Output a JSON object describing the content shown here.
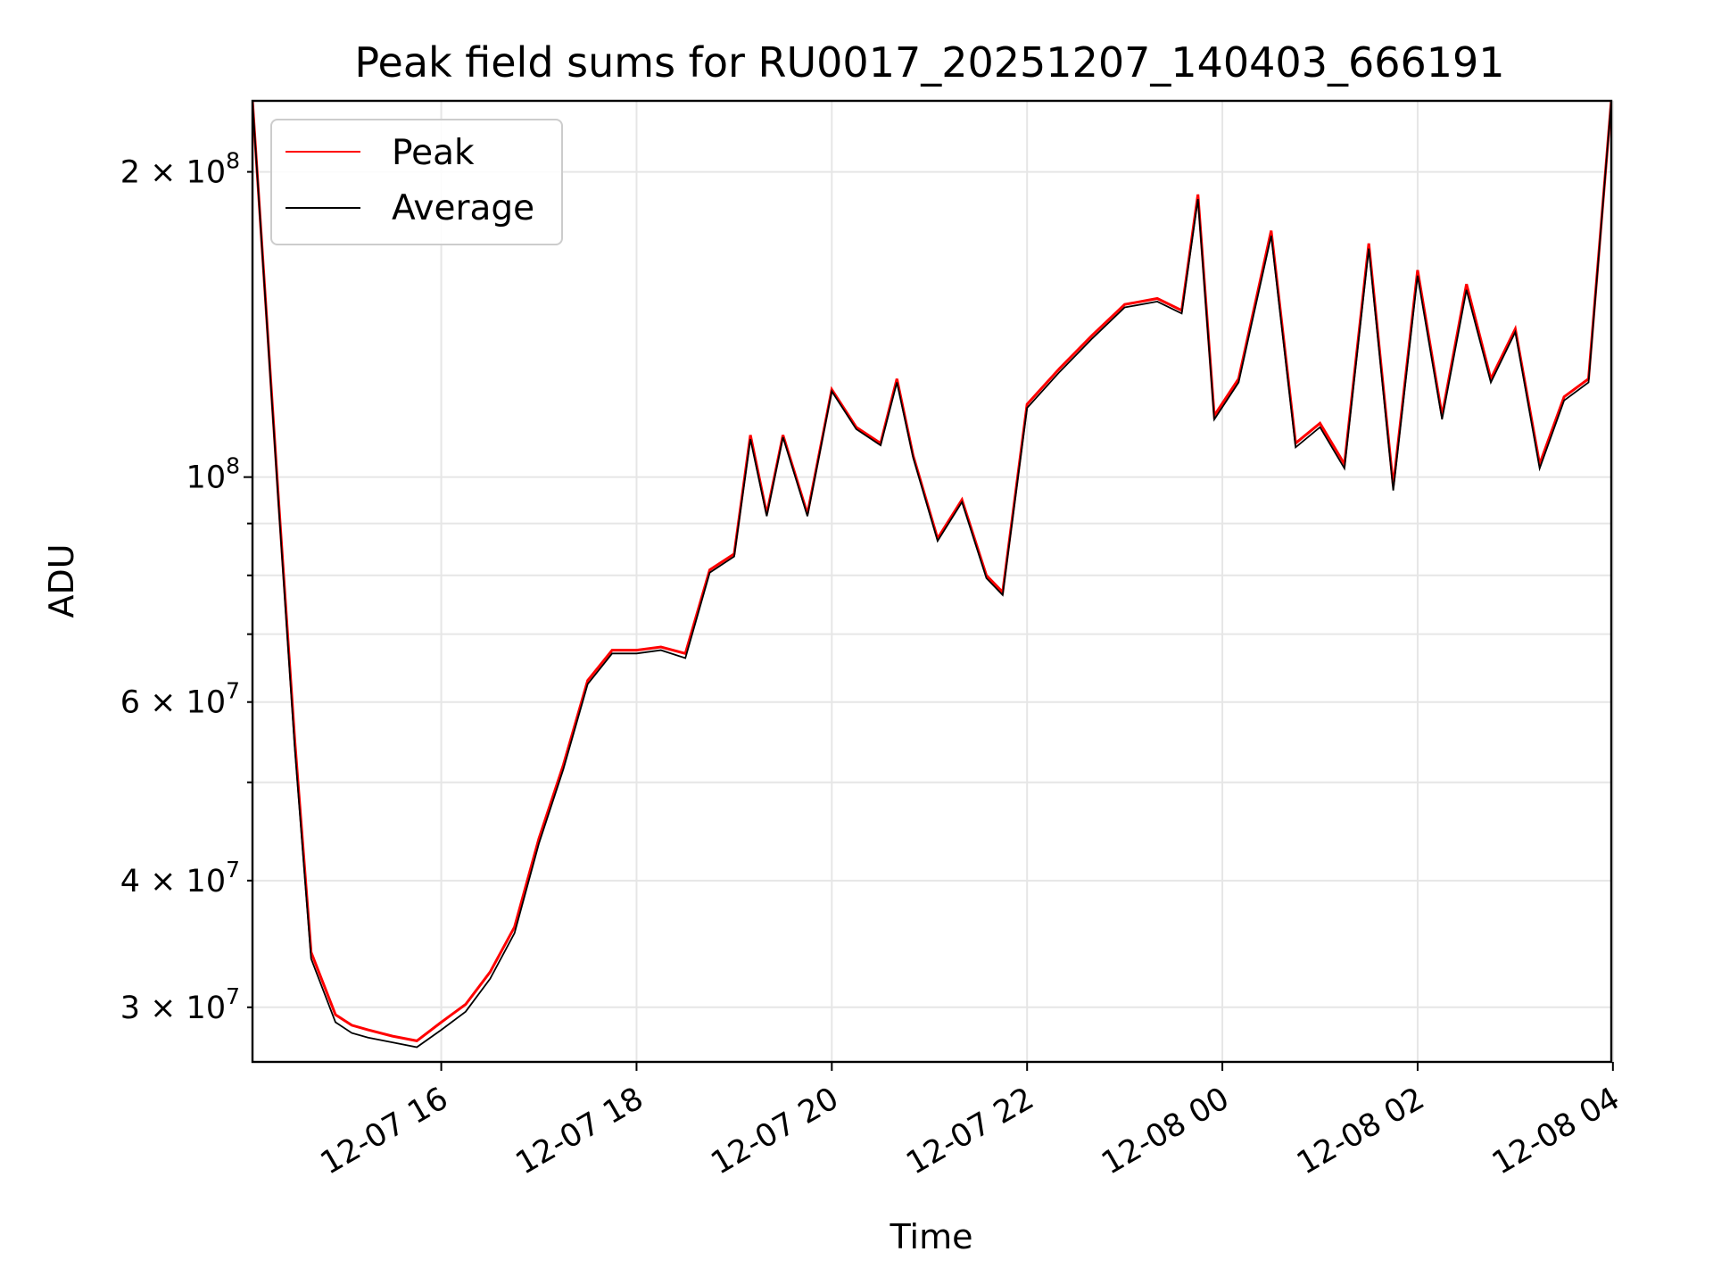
{
  "chart_data": {
    "type": "line",
    "title": "Peak field sums for RU0017_20251207_140403_666191",
    "xlabel": "Time",
    "ylabel": "ADU",
    "yscale": "log",
    "xlim": [
      "2025-12-07 14:04",
      "2025-12-08 03:59"
    ],
    "ylim": [
      26500000,
      235000000
    ],
    "grid": true,
    "legend_position": "upper left",
    "x_ticks": [
      "12-07 16",
      "12-07 18",
      "12-07 20",
      "12-07 22",
      "12-08 00",
      "12-08 02",
      "12-08 04"
    ],
    "y_ticks_major": [
      {
        "label_base": "10",
        "label_exp": "8",
        "label_mant": ""
      }
    ],
    "y_ticks_minor": [
      {
        "label_mant": "2",
        "label_base": "10",
        "label_exp": "8"
      },
      {
        "label_mant": "3",
        "label_base": "10",
        "label_exp": "7"
      },
      {
        "label_mant": "4",
        "label_base": "10",
        "label_exp": "7"
      },
      {
        "label_mant": "6",
        "label_base": "10",
        "label_exp": "7"
      }
    ],
    "series": [
      {
        "name": "Peak",
        "color": "#ff0000",
        "x": [
          "2025-12-07 14:04",
          "2025-12-07 14:20",
          "2025-12-07 14:30",
          "2025-12-07 14:40",
          "2025-12-07 14:55",
          "2025-12-07 15:05",
          "2025-12-07 15:15",
          "2025-12-07 15:30",
          "2025-12-07 15:45",
          "2025-12-07 16:00",
          "2025-12-07 16:15",
          "2025-12-07 16:30",
          "2025-12-07 16:45",
          "2025-12-07 17:00",
          "2025-12-07 17:15",
          "2025-12-07 17:30",
          "2025-12-07 17:45",
          "2025-12-07 18:00",
          "2025-12-07 18:15",
          "2025-12-07 18:30",
          "2025-12-07 18:45",
          "2025-12-07 19:00",
          "2025-12-07 19:10",
          "2025-12-07 19:20",
          "2025-12-07 19:30",
          "2025-12-07 19:45",
          "2025-12-07 20:00",
          "2025-12-07 20:15",
          "2025-12-07 20:30",
          "2025-12-07 20:40",
          "2025-12-07 20:50",
          "2025-12-07 21:05",
          "2025-12-07 21:20",
          "2025-12-07 21:35",
          "2025-12-07 21:45",
          "2025-12-07 22:00",
          "2025-12-07 22:20",
          "2025-12-07 22:40",
          "2025-12-07 23:00",
          "2025-12-07 23:20",
          "2025-12-07 23:35",
          "2025-12-07 23:45",
          "2025-12-07 23:55",
          "2025-12-08 00:10",
          "2025-12-08 00:30",
          "2025-12-08 00:45",
          "2025-12-08 01:00",
          "2025-12-08 01:15",
          "2025-12-08 01:30",
          "2025-12-08 01:45",
          "2025-12-08 02:00",
          "2025-12-08 02:15",
          "2025-12-08 02:30",
          "2025-12-08 02:45",
          "2025-12-08 03:00",
          "2025-12-08 03:15",
          "2025-12-08 03:30",
          "2025-12-08 03:45",
          "2025-12-08 03:59"
        ],
        "y": [
          235000000,
          95000000,
          55000000,
          34000000,
          29500000,
          28800000,
          28500000,
          28100000,
          27800000,
          29000000,
          30200000,
          32500000,
          36000000,
          44000000,
          52000000,
          63000000,
          67500000,
          67500000,
          68000000,
          67000000,
          81000000,
          84000000,
          110000000,
          92000000,
          110000000,
          92000000,
          122000000,
          112000000,
          108000000,
          125000000,
          105000000,
          87000000,
          95000000,
          80000000,
          77000000,
          118000000,
          128000000,
          138000000,
          148000000,
          150000000,
          146000000,
          190000000,
          115000000,
          125000000,
          175000000,
          108000000,
          113000000,
          103000000,
          170000000,
          98000000,
          160000000,
          115000000,
          155000000,
          125000000,
          140000000,
          103000000,
          120000000,
          125000000,
          235000000
        ]
      },
      {
        "name": "Average",
        "color": "#000000",
        "x": [
          "2025-12-07 14:04",
          "2025-12-07 14:20",
          "2025-12-07 14:30",
          "2025-12-07 14:40",
          "2025-12-07 14:55",
          "2025-12-07 15:05",
          "2025-12-07 15:15",
          "2025-12-07 15:30",
          "2025-12-07 15:45",
          "2025-12-07 16:00",
          "2025-12-07 16:15",
          "2025-12-07 16:30",
          "2025-12-07 16:45",
          "2025-12-07 17:00",
          "2025-12-07 17:15",
          "2025-12-07 17:30",
          "2025-12-07 17:45",
          "2025-12-07 18:00",
          "2025-12-07 18:15",
          "2025-12-07 18:30",
          "2025-12-07 18:45",
          "2025-12-07 19:00",
          "2025-12-07 19:10",
          "2025-12-07 19:20",
          "2025-12-07 19:30",
          "2025-12-07 19:45",
          "2025-12-07 20:00",
          "2025-12-07 20:15",
          "2025-12-07 20:30",
          "2025-12-07 20:40",
          "2025-12-07 20:50",
          "2025-12-07 21:05",
          "2025-12-07 21:20",
          "2025-12-07 21:35",
          "2025-12-07 21:45",
          "2025-12-07 22:00",
          "2025-12-07 22:20",
          "2025-12-07 22:40",
          "2025-12-07 23:00",
          "2025-12-07 23:20",
          "2025-12-07 23:35",
          "2025-12-07 23:45",
          "2025-12-07 23:55",
          "2025-12-08 00:10",
          "2025-12-08 00:30",
          "2025-12-08 00:45",
          "2025-12-08 01:00",
          "2025-12-08 01:15",
          "2025-12-08 01:30",
          "2025-12-08 01:45",
          "2025-12-08 02:00",
          "2025-12-08 02:15",
          "2025-12-08 02:30",
          "2025-12-08 02:45",
          "2025-12-08 03:00",
          "2025-12-08 03:15",
          "2025-12-08 03:30",
          "2025-12-08 03:45",
          "2025-12-08 03:59"
        ],
        "y": [
          235000000,
          94000000,
          54000000,
          33500000,
          29000000,
          28300000,
          28000000,
          27700000,
          27400000,
          28500000,
          29700000,
          32000000,
          35500000,
          43500000,
          51500000,
          62500000,
          67000000,
          67000000,
          67500000,
          66300000,
          80500000,
          83500000,
          109000000,
          91500000,
          109500000,
          91500000,
          121500000,
          111500000,
          107500000,
          124000000,
          104500000,
          86500000,
          94500000,
          79500000,
          76500000,
          117000000,
          127000000,
          137000000,
          147000000,
          149000000,
          145000000,
          188000000,
          114000000,
          124000000,
          173000000,
          107000000,
          112000000,
          102000000,
          168000000,
          97000000,
          158000000,
          114000000,
          153000000,
          124000000,
          139000000,
          102000000,
          119000000,
          124000000,
          235000000
        ]
      }
    ]
  }
}
